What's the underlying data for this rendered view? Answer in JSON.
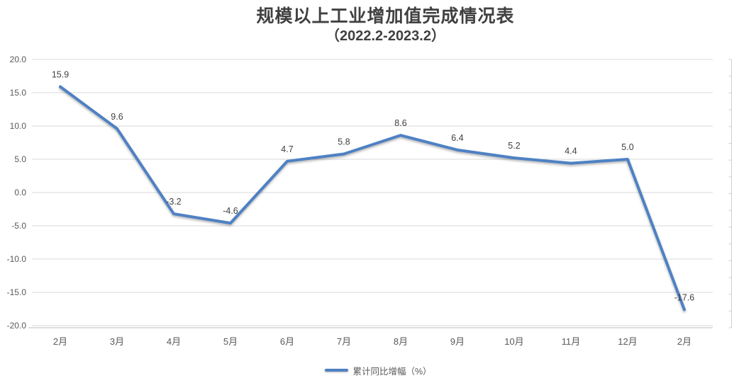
{
  "page": {
    "background": "#FFFFFF"
  },
  "title": {
    "line1": "规模以上工业增加值完成情况表",
    "line2": "（2022.2-2023.2）"
  },
  "legend": {
    "label": "累计同比增幅（%）"
  },
  "colors": {
    "line": "#4E81C4",
    "grid": "#D9D9D9",
    "axis_line": "#BFBFBF",
    "right_axis_line": "#D0CECE",
    "axis_text": "#595959",
    "data_label": "#404040",
    "title_text": "#404040"
  },
  "chart_data": {
    "type": "line",
    "title": "规模以上工业增加值完成情况表（2022.2-2023.2）",
    "categories": [
      "2月",
      "3月",
      "4月",
      "5月",
      "6月",
      "7月",
      "8月",
      "9月",
      "10月",
      "11月",
      "12月",
      "2月"
    ],
    "series": [
      {
        "name": "累计同比增幅（%）",
        "values": [
          15.9,
          9.6,
          -3.2,
          -4.6,
          4.7,
          5.8,
          8.6,
          6.4,
          5.2,
          4.4,
          5.0,
          -17.6
        ]
      }
    ],
    "xlabel": "",
    "ylabel": "",
    "ylim": [
      -20,
      20
    ],
    "ytick_step": 5,
    "ytick_labels": [
      "20.0",
      "15.0",
      "10.0",
      "5.0",
      "0.0",
      "-5.0",
      "-10.0",
      "-15.0",
      "-20.0"
    ],
    "grid": true,
    "data_labels": true,
    "legend_position": "bottom"
  }
}
